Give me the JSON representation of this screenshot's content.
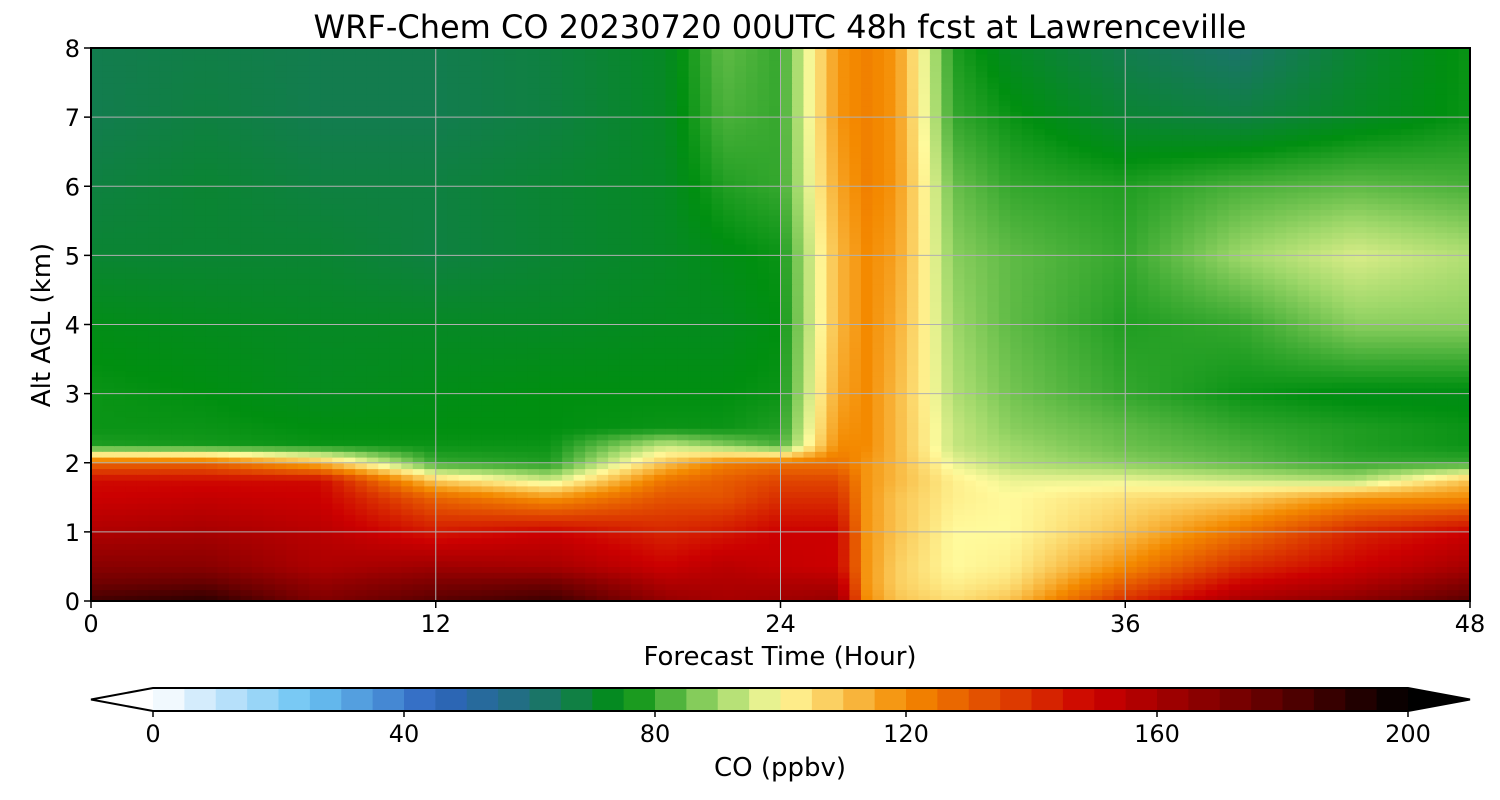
{
  "chart_data": {
    "type": "heatmap",
    "title": "WRF-Chem CO  20230720 00UTC 48h fcst at Lawrenceville",
    "xlabel": "Forecast Time (Hour)",
    "ylabel": "Alt AGL (km)",
    "xlim": [
      0,
      48
    ],
    "ylim": [
      0,
      8
    ],
    "xticks": [
      0,
      12,
      24,
      36,
      48
    ],
    "yticks": [
      0,
      1,
      2,
      3,
      4,
      5,
      6,
      7,
      8
    ],
    "grid": true,
    "units": "ppbv",
    "x": [
      0,
      4,
      8,
      12,
      16,
      20,
      22,
      24,
      26,
      27,
      28,
      30,
      32,
      36,
      40,
      44,
      48
    ],
    "y": [
      0,
      0.25,
      0.5,
      1,
      1.5,
      1.75,
      2,
      2.25,
      2.5,
      3,
      4,
      5,
      6,
      7,
      8
    ],
    "z": [
      [
        185,
        190,
        170,
        180,
        186,
        165,
        160,
        162,
        165,
        120,
        110,
        105,
        110,
        140,
        160,
        168,
        180
      ],
      [
        175,
        178,
        165,
        172,
        175,
        158,
        158,
        158,
        158,
        118,
        108,
        102,
        105,
        130,
        150,
        158,
        170
      ],
      [
        168,
        168,
        158,
        162,
        160,
        150,
        155,
        152,
        150,
        118,
        108,
        100,
        102,
        120,
        140,
        150,
        160
      ],
      [
        158,
        160,
        155,
        145,
        150,
        142,
        145,
        150,
        150,
        118,
        110,
        100,
        100,
        110,
        125,
        142,
        150
      ],
      [
        150,
        152,
        150,
        128,
        118,
        132,
        132,
        140,
        140,
        118,
        110,
        102,
        100,
        105,
        108,
        118,
        120
      ],
      [
        148,
        148,
        148,
        108,
        95,
        125,
        130,
        135,
        135,
        118,
        112,
        102,
        98,
        98,
        95,
        92,
        110
      ],
      [
        128,
        128,
        112,
        80,
        78,
        110,
        122,
        125,
        125,
        118,
        112,
        98,
        92,
        88,
        84,
        80,
        80
      ],
      [
        78,
        77,
        76,
        76,
        76,
        94,
        88,
        82,
        120,
        120,
        112,
        94,
        90,
        85,
        82,
        78,
        76
      ],
      [
        76,
        76,
        75,
        75,
        75,
        76,
        76,
        78,
        118,
        120,
        112,
        94,
        88,
        84,
        80,
        78,
        76
      ],
      [
        76,
        75,
        73,
        74,
        75,
        75,
        75,
        76,
        115,
        120,
        112,
        92,
        86,
        80,
        76,
        74,
        74
      ],
      [
        74,
        73,
        72,
        72,
        72,
        73,
        73,
        75,
        112,
        120,
        114,
        90,
        84,
        78,
        80,
        88,
        88
      ],
      [
        70,
        70,
        70,
        68,
        70,
        72,
        74,
        76,
        112,
        120,
        116,
        88,
        84,
        80,
        90,
        96,
        92
      ],
      [
        68,
        70,
        68,
        68,
        70,
        72,
        78,
        80,
        115,
        122,
        118,
        85,
        80,
        78,
        82,
        84,
        82
      ],
      [
        66,
        68,
        66,
        66,
        68,
        72,
        82,
        80,
        118,
        122,
        118,
        80,
        76,
        70,
        68,
        72,
        76
      ],
      [
        66,
        67,
        66,
        66,
        68,
        72,
        84,
        80,
        118,
        122,
        118,
        78,
        72,
        66,
        62,
        70,
        76
      ]
    ],
    "colorbar": {
      "label": "CO  (ppbv)",
      "min": 0,
      "max": 200,
      "step": 5,
      "ticks": [
        0,
        40,
        80,
        120,
        160,
        200
      ],
      "extend": "both",
      "stops": [
        {
          "v": 0,
          "c": "#ffffff"
        },
        {
          "v": 10,
          "c": "#c5e6fb"
        },
        {
          "v": 25,
          "c": "#6ac3f2"
        },
        {
          "v": 45,
          "c": "#2f64c0"
        },
        {
          "v": 60,
          "c": "#1f7078"
        },
        {
          "v": 75,
          "c": "#008f10"
        },
        {
          "v": 90,
          "c": "#9fd86a"
        },
        {
          "v": 100,
          "c": "#fffa9c"
        },
        {
          "v": 120,
          "c": "#f48a00"
        },
        {
          "v": 150,
          "c": "#cc0000"
        },
        {
          "v": 175,
          "c": "#6e0000"
        },
        {
          "v": 200,
          "c": "#000000"
        }
      ]
    }
  }
}
